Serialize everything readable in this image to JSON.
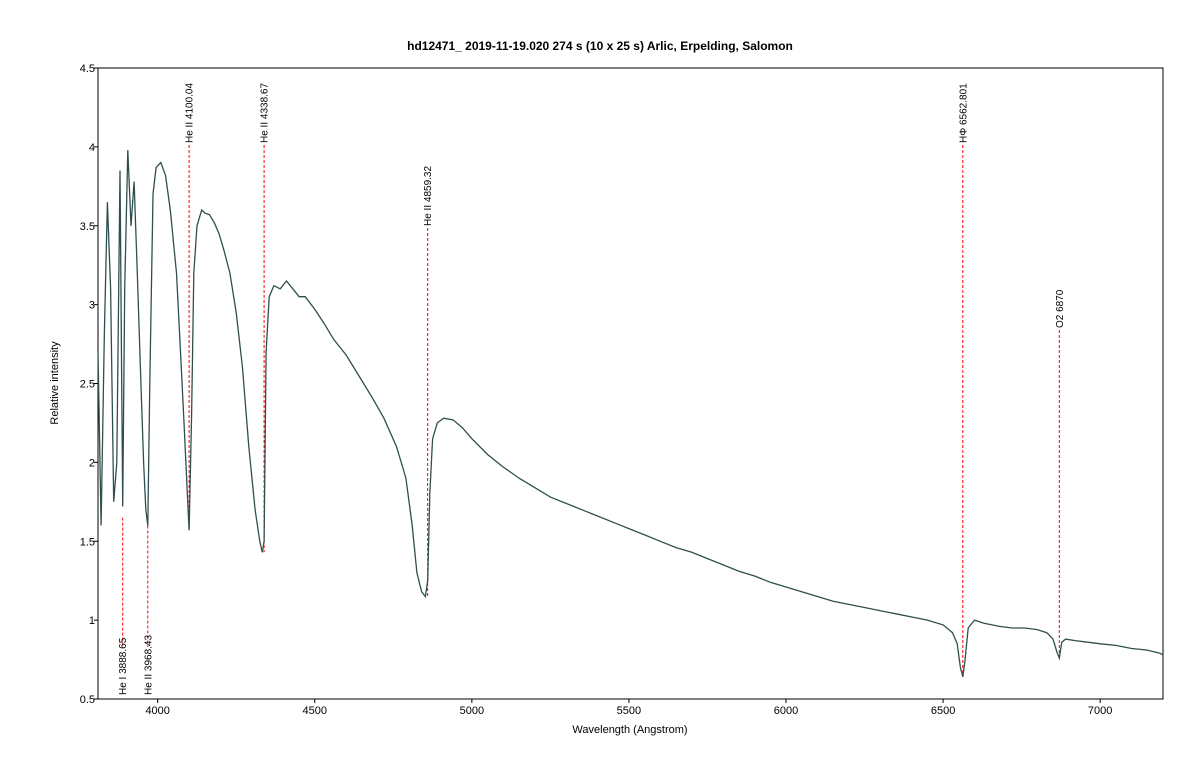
{
  "chart_data": {
    "type": "line",
    "title": "hd12471_  2019-11-19.020  274 s (10 x 25 s)  Arlic, Erpelding, Salomon",
    "xlabel": "Wavelength (Angstrom)",
    "ylabel": "Relative intensity",
    "xlim": [
      3810,
      7200
    ],
    "ylim": [
      0.5,
      4.5
    ],
    "x_ticks": [
      4000,
      4500,
      5000,
      5500,
      6000,
      6500,
      7000
    ],
    "y_ticks": [
      0.5,
      1,
      1.5,
      2,
      2.5,
      3,
      3.5,
      4,
      4.5
    ],
    "x_tick_labels": [
      "4000",
      "4500",
      "5000",
      "5500",
      "6000",
      "6500",
      "7000"
    ],
    "y_tick_labels": [
      "0.5",
      "1",
      "1.5",
      "2",
      "2.5",
      "3",
      "3.5",
      "4",
      "4.5"
    ],
    "grid": false,
    "series_color": "#2f4f4f",
    "marker_color": "#ff0000",
    "spectrum": {
      "x": [
        3810,
        3820,
        3830,
        3840,
        3850,
        3860,
        3870,
        3880,
        3888.65,
        3895,
        3905,
        3915,
        3925,
        3935,
        3945,
        3955,
        3962,
        3968.43,
        3975,
        3985,
        3995,
        4010,
        4025,
        4040,
        4060,
        4075,
        4085,
        4092,
        4100,
        4108,
        4115,
        4125,
        4140,
        4150,
        4165,
        4180,
        4195,
        4210,
        4230,
        4250,
        4270,
        4290,
        4310,
        4325,
        4333,
        4338.67,
        4345,
        4355,
        4370,
        4390,
        4410,
        4430,
        4450,
        4470,
        4500,
        4530,
        4560,
        4600,
        4640,
        4680,
        4720,
        4760,
        4790,
        4810,
        4825,
        4840,
        4852,
        4859.32,
        4866,
        4875,
        4890,
        4910,
        4940,
        4970,
        5000,
        5050,
        5100,
        5150,
        5200,
        5250,
        5300,
        5350,
        5400,
        5450,
        5500,
        5550,
        5600,
        5650,
        5700,
        5750,
        5800,
        5850,
        5900,
        5950,
        6000,
        6050,
        6100,
        6150,
        6200,
        6250,
        6300,
        6350,
        6400,
        6450,
        6500,
        6530,
        6545,
        6555,
        6562.801,
        6570,
        6580,
        6600,
        6630,
        6680,
        6720,
        6760,
        6800,
        6830,
        6850,
        6862,
        6870,
        6878,
        6890,
        6920,
        6960,
        7000,
        7050,
        7100,
        7150,
        7190,
        7200
      ],
      "y": [
        2.7,
        1.6,
        2.8,
        3.65,
        3.1,
        1.75,
        2.0,
        3.85,
        1.72,
        3.1,
        3.98,
        3.5,
        3.78,
        3.2,
        2.6,
        2.0,
        1.7,
        1.6,
        2.5,
        3.7,
        3.87,
        3.9,
        3.82,
        3.6,
        3.2,
        2.6,
        2.2,
        1.9,
        1.57,
        2.3,
        3.2,
        3.5,
        3.6,
        3.58,
        3.57,
        3.52,
        3.45,
        3.35,
        3.2,
        2.95,
        2.6,
        2.1,
        1.7,
        1.5,
        1.43,
        1.5,
        2.7,
        3.05,
        3.12,
        3.1,
        3.15,
        3.1,
        3.05,
        3.05,
        2.97,
        2.88,
        2.78,
        2.68,
        2.55,
        2.42,
        2.28,
        2.1,
        1.9,
        1.6,
        1.3,
        1.18,
        1.15,
        1.25,
        1.8,
        2.15,
        2.25,
        2.28,
        2.27,
        2.22,
        2.15,
        2.05,
        1.97,
        1.9,
        1.84,
        1.78,
        1.74,
        1.7,
        1.66,
        1.62,
        1.58,
        1.54,
        1.5,
        1.46,
        1.43,
        1.39,
        1.35,
        1.31,
        1.28,
        1.24,
        1.21,
        1.18,
        1.15,
        1.12,
        1.1,
        1.08,
        1.06,
        1.04,
        1.02,
        1.0,
        0.97,
        0.92,
        0.85,
        0.7,
        0.64,
        0.75,
        0.95,
        1.0,
        0.98,
        0.96,
        0.95,
        0.95,
        0.94,
        0.92,
        0.88,
        0.8,
        0.76,
        0.86,
        0.88,
        0.87,
        0.86,
        0.85,
        0.84,
        0.82,
        0.81,
        0.79,
        0.78
      ]
    },
    "line_markers": [
      {
        "label": "He I 3888.65",
        "x": 3888.65,
        "position": "bottom",
        "y_end": 1.65
      },
      {
        "label": "He II 3968.43",
        "x": 3968.43,
        "position": "bottom",
        "y_end": 1.6
      },
      {
        "label": "He II 4100.04",
        "x": 4100.04,
        "position": "top",
        "y_end": 1.57
      },
      {
        "label": "He II 4338.67",
        "x": 4338.67,
        "position": "top",
        "y_end": 1.43
      },
      {
        "label": "He II 4859.32",
        "x": 4859.32,
        "position": "top-mid",
        "y_end": 1.15
      },
      {
        "label": "HΦ 6562.801",
        "x": 6562.801,
        "position": "top",
        "y_end": 0.64
      },
      {
        "label": "O2 6870",
        "x": 6870,
        "position": "mid",
        "y_end": 0.76
      }
    ]
  }
}
